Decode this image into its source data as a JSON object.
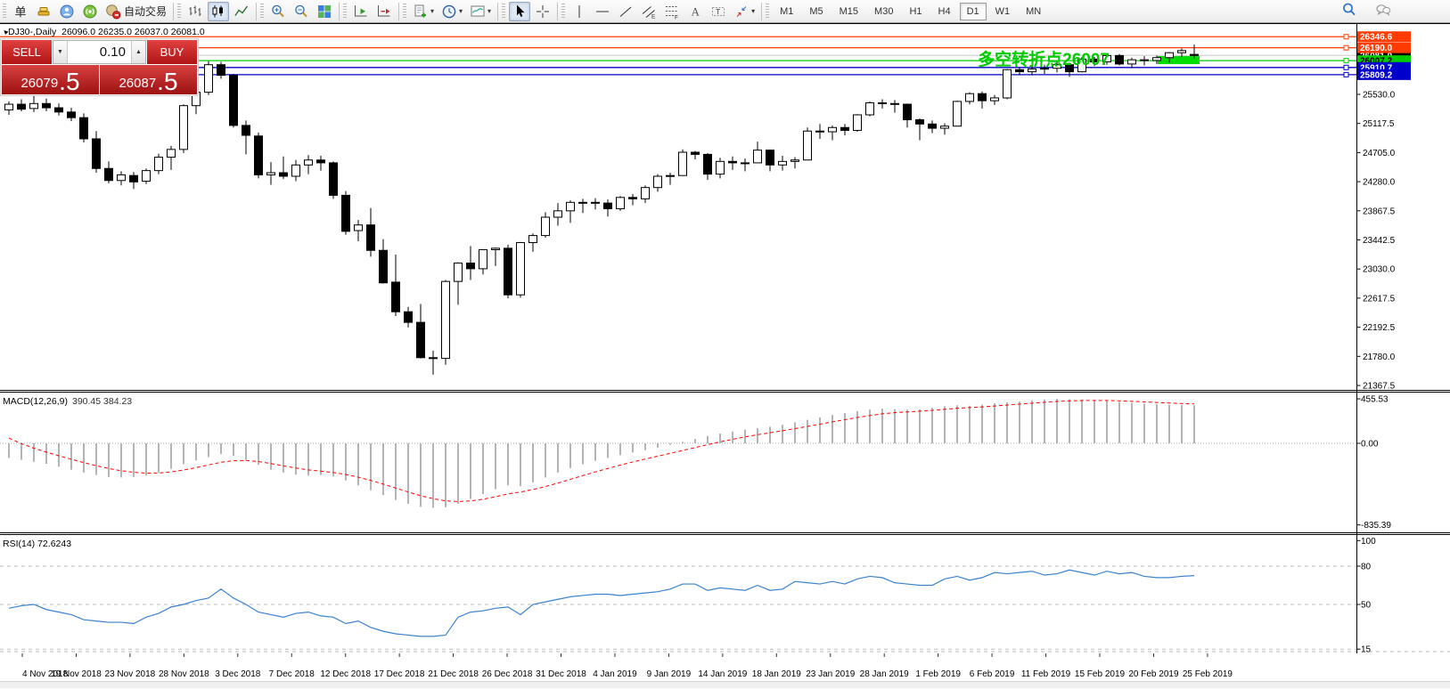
{
  "toolbar": {
    "order_char": "单",
    "autotrading_label": "自动交易",
    "timeframes": [
      "M1",
      "M5",
      "M15",
      "M30",
      "H1",
      "H4",
      "D1",
      "W1",
      "MN"
    ],
    "active_timeframe": "D1",
    "groups": [
      {
        "items": [
          {
            "name": "order-menu-button",
            "char": "单"
          },
          {
            "name": "gold-bars-icon"
          },
          {
            "name": "community-icon"
          },
          {
            "name": "signals-icon"
          },
          {
            "name": "autotrading-button",
            "labeled": true
          }
        ]
      },
      {
        "items": [
          {
            "name": "bar-chart-icon"
          },
          {
            "name": "candlestick-chart-icon",
            "active": true
          },
          {
            "name": "line-chart-icon"
          }
        ]
      },
      {
        "items": [
          {
            "name": "zoom-in-icon"
          },
          {
            "name": "zoom-out-icon"
          },
          {
            "name": "tile-windows-icon"
          }
        ]
      },
      {
        "items": [
          {
            "name": "auto-scroll-icon"
          },
          {
            "name": "chart-shift-icon"
          }
        ]
      },
      {
        "items": [
          {
            "name": "new-order-icon",
            "dropdown": true
          },
          {
            "name": "periods-clock-icon",
            "dropdown": true
          },
          {
            "name": "template-icon",
            "dropdown": true
          }
        ]
      },
      {
        "items": [
          {
            "name": "cursor-icon",
            "active": true
          },
          {
            "name": "crosshair-icon"
          }
        ]
      },
      {
        "items": [
          {
            "name": "vline-icon"
          },
          {
            "name": "hline-icon"
          },
          {
            "name": "trendline-icon"
          },
          {
            "name": "channel-icon"
          },
          {
            "name": "fibo-icon"
          },
          {
            "name": "text-icon"
          },
          {
            "name": "label-icon"
          },
          {
            "name": "arrows-icon",
            "dropdown": true
          }
        ]
      },
      {
        "type": "timeframes"
      }
    ],
    "right_icons": [
      "search-icon",
      "chat-icon"
    ]
  },
  "trade_panel": {
    "sell_label": "SELL",
    "buy_label": "BUY",
    "volume": "0.10",
    "sell_price_main": "26079",
    "sell_price_pips": ".5",
    "buy_price_main": "26087",
    "buy_price_pips": ".5"
  },
  "chart": {
    "title_symbol": "DJ30-,Daily",
    "title_ohlc": "26096.0 26235.0 26037.0 26081.0",
    "annotation": {
      "text": "多空转折点26007",
      "color": "#00cc00"
    },
    "hlines": [
      {
        "label": "26346.6",
        "value": 26346.6,
        "color": "#ff3b00",
        "text_color": "#ffffff"
      },
      {
        "label": "26190.0",
        "value": 26190.0,
        "color": "#ff3b00",
        "text_color": "#ffffff"
      },
      {
        "label": "26007.2",
        "value": 26007.2,
        "color": "#00cc00",
        "text_color": "#000000"
      },
      {
        "label": "25910.7",
        "value": 25910.7,
        "color": "#0000cc",
        "text_color": "#ffffff"
      },
      {
        "label": "25809.2",
        "value": 25809.2,
        "color": "#0000cc",
        "text_color": "#ffffff"
      }
    ],
    "current_price": {
      "label": "26081.0",
      "value": 26081.0,
      "line_color": "#c8c8c8",
      "tag_bg": "#000000",
      "text_color": "#ffffff"
    },
    "zone": {
      "color": "#00dd00",
      "price_top": 26072,
      "price_bottom": 25958
    },
    "price_axis_labels": [
      "25530.0",
      "25117.5",
      "24705.0",
      "24280.0",
      "23867.5",
      "23442.5",
      "23030.0",
      "22617.5",
      "22192.5",
      "21780.0",
      "21367.5"
    ],
    "date_axis_labels": [
      "4 Nov 2018",
      "19 Nov 2018",
      "23 Nov 2018",
      "28 Nov 2018",
      "3 Dec 2018",
      "7 Dec 2018",
      "12 Dec 2018",
      "17 Dec 2018",
      "21 Dec 2018",
      "26 Dec 2018",
      "31 Dec 2018",
      "4 Jan 2019",
      "9 Jan 2019",
      "14 Jan 2019",
      "18 Jan 2019",
      "23 Jan 2019",
      "28 Jan 2019",
      "1 Feb 2019",
      "6 Feb 2019",
      "11 Feb 2019",
      "15 Feb 2019",
      "20 Feb 2019",
      "25 Feb 2019"
    ]
  },
  "macd_pane": {
    "label": "MACD(12,26,9)",
    "values_text": "390.45 384.23",
    "axis_labels": [
      "455.53",
      "0.00",
      "-835.39"
    ]
  },
  "rsi_pane": {
    "label": "RSI(14)",
    "value_text": "72.6243",
    "axis_labels": [
      "100",
      "80",
      "50",
      "15"
    ]
  },
  "chart_data": [
    {
      "type": "candlestick",
      "name": "DJ30- Daily",
      "last_bar": {
        "open": 26096.0,
        "high": 26235.0,
        "low": 26037.0,
        "close": 26081.0
      },
      "ylim": [
        21367.5,
        26380
      ],
      "y_ticks": [
        25530.0,
        25117.5,
        24705.0,
        24280.0,
        23867.5,
        23442.5,
        23030.0,
        22617.5,
        22192.5,
        21780.0,
        21367.5
      ],
      "x_tick_dates": [
        "4 Nov 2018",
        "19 Nov 2018",
        "23 Nov 2018",
        "28 Nov 2018",
        "3 Dec 2018",
        "7 Dec 2018",
        "12 Dec 2018",
        "17 Dec 2018",
        "21 Dec 2018",
        "26 Dec 2018",
        "31 Dec 2018",
        "4 Jan 2019",
        "9 Jan 2019",
        "14 Jan 2019",
        "18 Jan 2019",
        "23 Jan 2019",
        "28 Jan 2019",
        "1 Feb 2019",
        "6 Feb 2019",
        "11 Feb 2019",
        "15 Feb 2019",
        "20 Feb 2019",
        "25 Feb 2019"
      ],
      "hlines": [
        26346.6,
        26190.0,
        26007.2,
        25910.7,
        25809.2
      ],
      "current_price": 26081.0,
      "candles": [
        [
          25310,
          25430,
          25240,
          25390
        ],
        [
          25390,
          25460,
          25290,
          25320
        ],
        [
          25330,
          25570,
          25280,
          25400
        ],
        [
          25400,
          25470,
          25290,
          25340
        ],
        [
          25340,
          25400,
          25230,
          25280
        ],
        [
          25280,
          25340,
          25150,
          25200
        ],
        [
          25200,
          25260,
          24850,
          24900
        ],
        [
          24900,
          25010,
          24420,
          24480
        ],
        [
          24480,
          24580,
          24270,
          24310
        ],
        [
          24310,
          24440,
          24240,
          24390
        ],
        [
          24380,
          24430,
          24190,
          24290
        ],
        [
          24300,
          24480,
          24260,
          24450
        ],
        [
          24450,
          24690,
          24400,
          24640
        ],
        [
          24640,
          24800,
          24460,
          24750
        ],
        [
          24750,
          25390,
          24700,
          25370
        ],
        [
          25370,
          25600,
          25250,
          25560
        ],
        [
          25560,
          26000,
          25520,
          25950
        ],
        [
          25950,
          25990,
          25750,
          25800
        ],
        [
          25800,
          25820,
          25060,
          25090
        ],
        [
          25090,
          25160,
          24680,
          24950
        ],
        [
          24940,
          24990,
          24340,
          24390
        ],
        [
          24390,
          24570,
          24250,
          24420
        ],
        [
          24420,
          24650,
          24330,
          24370
        ],
        [
          24370,
          24600,
          24300,
          24530
        ],
        [
          24530,
          24670,
          24400,
          24600
        ],
        [
          24600,
          24660,
          24450,
          24560
        ],
        [
          24560,
          24580,
          24050,
          24100
        ],
        [
          24100,
          24160,
          23540,
          23590
        ],
        [
          23600,
          23750,
          23450,
          23680
        ],
        [
          23680,
          23920,
          23230,
          23320
        ],
        [
          23320,
          23480,
          22850,
          22860
        ],
        [
          22870,
          23260,
          22390,
          22450
        ],
        [
          22450,
          22520,
          22230,
          22300
        ],
        [
          22300,
          22560,
          21790,
          21800
        ],
        [
          21800,
          21900,
          21560,
          21790
        ],
        [
          21790,
          22900,
          21700,
          22880
        ],
        [
          22880,
          23150,
          22550,
          23140
        ],
        [
          23140,
          23380,
          22900,
          23060
        ],
        [
          23060,
          23330,
          22980,
          23330
        ],
        [
          23330,
          23360,
          23100,
          23350
        ],
        [
          23350,
          23400,
          22640,
          22690
        ],
        [
          22690,
          23440,
          22650,
          23430
        ],
        [
          23430,
          23560,
          23300,
          23530
        ],
        [
          23530,
          23860,
          23500,
          23790
        ],
        [
          23790,
          23990,
          23670,
          23880
        ],
        [
          23880,
          24030,
          23710,
          24000
        ],
        [
          24000,
          24050,
          23850,
          24000
        ],
        [
          24000,
          24060,
          23900,
          23990
        ],
        [
          23990,
          24040,
          23800,
          23910
        ],
        [
          23910,
          24090,
          23880,
          24070
        ],
        [
          24070,
          24120,
          23960,
          24050
        ],
        [
          24050,
          24240,
          23990,
          24210
        ],
        [
          24210,
          24400,
          24150,
          24370
        ],
        [
          24370,
          24420,
          24250,
          24380
        ],
        [
          24380,
          24750,
          24380,
          24710
        ],
        [
          24710,
          24730,
          24610,
          24680
        ],
        [
          24680,
          24700,
          24320,
          24400
        ],
        [
          24400,
          24630,
          24340,
          24580
        ],
        [
          24580,
          24650,
          24460,
          24560
        ],
        [
          24560,
          24620,
          24440,
          24550
        ],
        [
          24560,
          24860,
          24560,
          24740
        ],
        [
          24740,
          24750,
          24440,
          24530
        ],
        [
          24530,
          24660,
          24450,
          24580
        ],
        [
          24580,
          24640,
          24480,
          24600
        ],
        [
          24600,
          25060,
          24600,
          25010
        ],
        [
          25010,
          25110,
          24900,
          25000
        ],
        [
          25000,
          25090,
          24880,
          25060
        ],
        [
          25060,
          25110,
          24950,
          25020
        ],
        [
          25020,
          25250,
          25000,
          25240
        ],
        [
          25240,
          25430,
          25220,
          25410
        ],
        [
          25410,
          25460,
          25330,
          25400
        ],
        [
          25400,
          25450,
          25270,
          25390
        ],
        [
          25390,
          25400,
          25060,
          25170
        ],
        [
          25170,
          25190,
          24880,
          25110
        ],
        [
          25110,
          25160,
          24980,
          25050
        ],
        [
          25050,
          25120,
          24960,
          25080
        ],
        [
          25080,
          25440,
          25080,
          25430
        ],
        [
          25430,
          25560,
          25390,
          25540
        ],
        [
          25540,
          25570,
          25330,
          25440
        ],
        [
          25440,
          25520,
          25380,
          25480
        ],
        [
          25480,
          25890,
          25460,
          25880
        ],
        [
          25880,
          25910,
          25800,
          25850
        ],
        [
          25850,
          25960,
          25800,
          25890
        ],
        [
          25890,
          25950,
          25820,
          25900
        ],
        [
          25900,
          26000,
          25840,
          25950
        ],
        [
          25950,
          25980,
          25780,
          25850
        ],
        [
          25850,
          26060,
          25840,
          26030
        ],
        [
          26030,
          26060,
          25930,
          25990
        ],
        [
          25990,
          26090,
          25950,
          26080
        ],
        [
          26080,
          26100,
          25940,
          25960
        ],
        [
          25960,
          26050,
          25900,
          26020
        ],
        [
          26020,
          26070,
          25940,
          26010
        ],
        [
          26010,
          26080,
          25960,
          26050
        ],
        [
          26050,
          26130,
          25980,
          26120
        ],
        [
          26120,
          26180,
          26060,
          26150
        ],
        [
          26096,
          26235,
          26037,
          26081
        ]
      ]
    },
    {
      "type": "bar",
      "name": "MACD(12,26,9) histogram",
      "current_main": 390.45,
      "current_signal": 384.23,
      "ylim": [
        -835.39,
        455.53
      ],
      "y_ticks": [
        455.53,
        0.0,
        -835.39
      ],
      "values": [
        -150,
        -170,
        -190,
        -210,
        -240,
        -270,
        -300,
        -325,
        -345,
        -350,
        -345,
        -330,
        -300,
        -260,
        -215,
        -175,
        -140,
        -110,
        -130,
        -170,
        -220,
        -270,
        -300,
        -320,
        -330,
        -325,
        -340,
        -380,
        -430,
        -480,
        -530,
        -580,
        -620,
        -650,
        -660,
        -655,
        -620,
        -570,
        -520,
        -470,
        -430,
        -440,
        -400,
        -350,
        -300,
        -255,
        -215,
        -180,
        -150,
        -120,
        -95,
        -70,
        -45,
        -15,
        15,
        45,
        75,
        100,
        120,
        140,
        155,
        170,
        190,
        215,
        240,
        265,
        290,
        310,
        330,
        345,
        355,
        350,
        345,
        350,
        365,
        380,
        390,
        385,
        395,
        410,
        420,
        430,
        440,
        448,
        455,
        452,
        448,
        443,
        435,
        425,
        415,
        408,
        400,
        396,
        392,
        390.45
      ]
    },
    {
      "type": "line",
      "name": "RSI(14)",
      "current": 72.6243,
      "ylim": [
        0,
        100
      ],
      "levels": [
        80,
        50,
        15
      ],
      "values": [
        47,
        49,
        50,
        46,
        44,
        42,
        38,
        37,
        36,
        36,
        35,
        40,
        43,
        48,
        50,
        53,
        55,
        62,
        55,
        50,
        44,
        42,
        40,
        43,
        44,
        41,
        40,
        35,
        37,
        32,
        29,
        27,
        26,
        25,
        25,
        26,
        40,
        44,
        45,
        47,
        48,
        42,
        50,
        52,
        54,
        56,
        57,
        58,
        58,
        57,
        58,
        59,
        60,
        62,
        66,
        66,
        61,
        63,
        62,
        61,
        65,
        61,
        62,
        68,
        67,
        66,
        68,
        66,
        70,
        72,
        71,
        67,
        66,
        65,
        65,
        70,
        72,
        69,
        71,
        75,
        74,
        75,
        76,
        73,
        74,
        77,
        75,
        73,
        76,
        74,
        75,
        72,
        71,
        71,
        72,
        72.6
      ]
    }
  ]
}
